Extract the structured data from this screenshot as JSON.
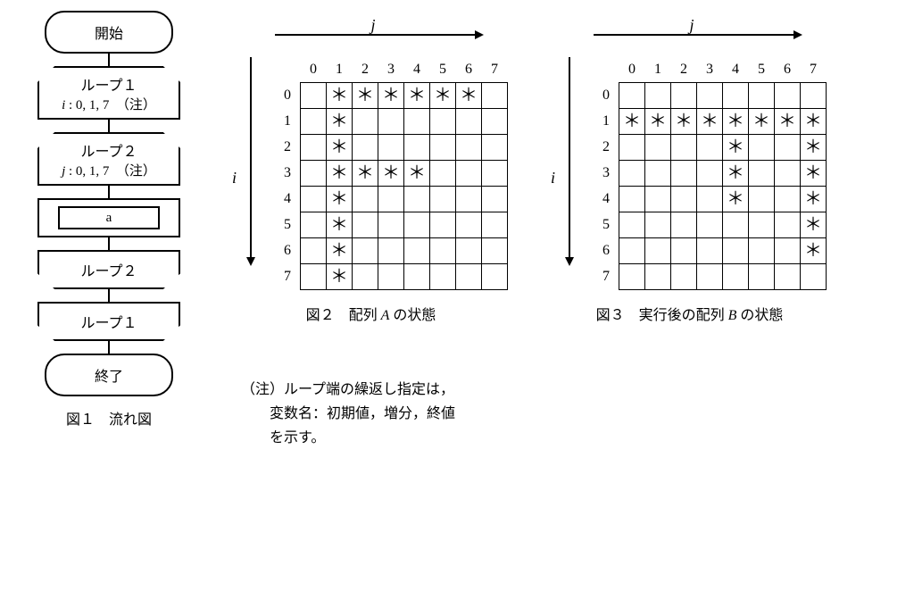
{
  "flow": {
    "start": "開始",
    "loop1_name": "ループ１",
    "loop1_spec": "i : 0, 1, 7　（注）",
    "loop2_name": "ループ２",
    "loop2_spec": "j : 0, 1, 7　（注）",
    "process_a": "a",
    "loop2_end": "ループ２",
    "loop1_end": "ループ１",
    "end": "終了",
    "caption": "図１　流れ図"
  },
  "gridA": {
    "title": "図２　配列 A の状態",
    "j_label": "j",
    "i_label": "i",
    "col_headers": [
      "0",
      "1",
      "2",
      "3",
      "4",
      "5",
      "6",
      "7"
    ],
    "row_headers": [
      "0",
      "1",
      "2",
      "3",
      "4",
      "5",
      "6",
      "7"
    ],
    "star": "＊",
    "cells": [
      [
        0,
        1,
        1,
        1,
        1,
        1,
        1,
        0
      ],
      [
        0,
        1,
        0,
        0,
        0,
        0,
        0,
        0
      ],
      [
        0,
        1,
        0,
        0,
        0,
        0,
        0,
        0
      ],
      [
        0,
        1,
        1,
        1,
        1,
        0,
        0,
        0
      ],
      [
        0,
        1,
        0,
        0,
        0,
        0,
        0,
        0
      ],
      [
        0,
        1,
        0,
        0,
        0,
        0,
        0,
        0
      ],
      [
        0,
        1,
        0,
        0,
        0,
        0,
        0,
        0
      ],
      [
        0,
        1,
        0,
        0,
        0,
        0,
        0,
        0
      ]
    ]
  },
  "gridB": {
    "title": "図３　実行後の配列 B の状態",
    "j_label": "j",
    "i_label": "i",
    "col_headers": [
      "0",
      "1",
      "2",
      "3",
      "4",
      "5",
      "6",
      "7"
    ],
    "row_headers": [
      "0",
      "1",
      "2",
      "3",
      "4",
      "5",
      "6",
      "7"
    ],
    "star": "＊",
    "cells": [
      [
        0,
        0,
        0,
        0,
        0,
        0,
        0,
        0
      ],
      [
        1,
        1,
        1,
        1,
        1,
        1,
        1,
        1
      ],
      [
        0,
        0,
        0,
        0,
        1,
        0,
        0,
        1
      ],
      [
        0,
        0,
        0,
        0,
        1,
        0,
        0,
        1
      ],
      [
        0,
        0,
        0,
        0,
        1,
        0,
        0,
        1
      ],
      [
        0,
        0,
        0,
        0,
        0,
        0,
        0,
        1
      ],
      [
        0,
        0,
        0,
        0,
        0,
        0,
        0,
        1
      ],
      [
        0,
        0,
        0,
        0,
        0,
        0,
        0,
        0
      ]
    ]
  },
  "note": {
    "l1": "（注）ループ端の繰返し指定は，",
    "l2": "　　変数名：初期値，増分，終値",
    "l3": "　　を示す。"
  }
}
